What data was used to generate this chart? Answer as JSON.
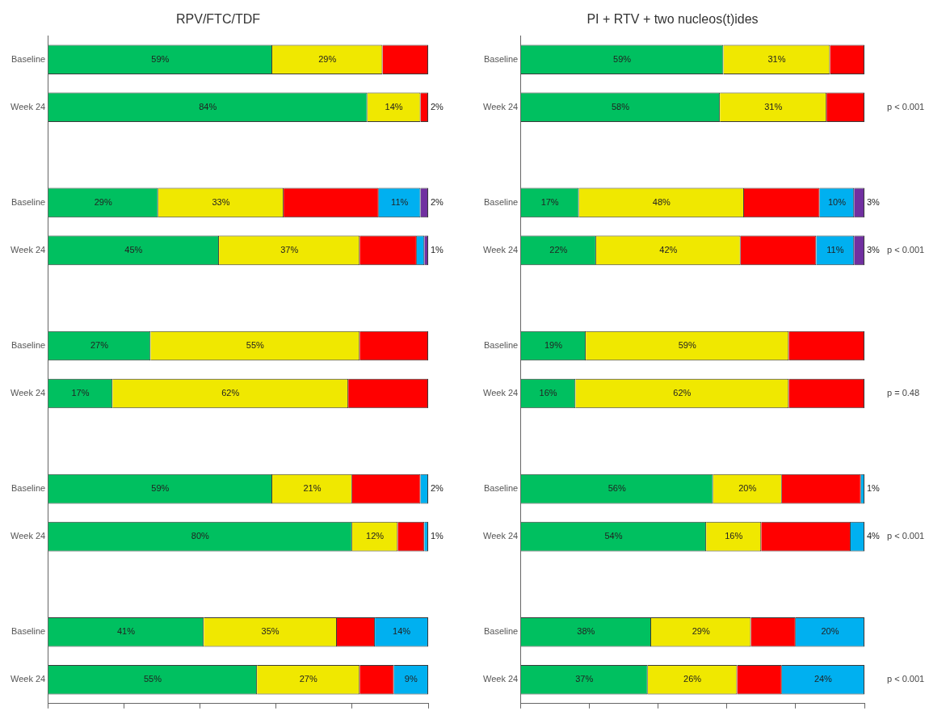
{
  "chart_data": [
    {
      "type": "bar",
      "orientation": "horizontal",
      "stacked": true,
      "title": "RPV/FTC/TDF",
      "categories": [
        "Baseline",
        "Week 24",
        null,
        "Baseline",
        "Week 24",
        null,
        "Baseline",
        "Week 24",
        null,
        "Baseline",
        "Week 24",
        null,
        "Baseline",
        "Week 24"
      ],
      "xlim": [
        0,
        100
      ],
      "xticks": [
        {
          "value": 0,
          "label": null
        },
        {
          "value": 20,
          "label": null
        },
        {
          "value": 40,
          "label": null
        },
        {
          "value": 60,
          "label": null
        },
        {
          "value": 80,
          "label": null
        },
        {
          "value": 100,
          "label": null
        }
      ],
      "tick_labels": "y",
      "grid": false,
      "legend": false,
      "series": [
        {
          "color": "#00c060",
          "values": [
            59,
            84,
            null,
            29,
            45,
            null,
            27,
            17,
            null,
            59,
            80,
            null,
            41,
            55
          ],
          "value_labels": [
            "59%",
            "84%",
            null,
            "29%",
            "45%",
            null,
            "27%",
            "17%",
            null,
            "59%",
            "80%",
            null,
            "41%",
            "55%"
          ]
        },
        {
          "color": "#f0e800",
          "values": [
            29,
            14,
            null,
            33,
            37,
            null,
            55,
            62,
            null,
            21,
            12,
            null,
            35,
            27
          ],
          "value_labels": [
            "29%",
            "14%",
            null,
            "33%",
            "37%",
            null,
            "55%",
            "62%",
            null,
            "21%",
            "12%",
            null,
            "35%",
            "27%"
          ]
        },
        {
          "color": "#ff0000",
          "values": [
            12,
            2,
            null,
            25,
            15,
            null,
            18,
            21,
            null,
            18,
            7,
            null,
            10,
            9
          ],
          "value_labels": [
            null,
            "2%",
            null,
            null,
            null,
            null,
            null,
            null,
            null,
            null,
            null,
            null,
            null,
            null
          ]
        },
        {
          "color": "#00b0f0",
          "values": [
            0,
            0,
            null,
            11,
            2,
            null,
            0,
            0,
            null,
            2,
            1,
            null,
            14,
            9
          ],
          "value_labels": [
            null,
            null,
            null,
            "11%",
            null,
            null,
            null,
            null,
            null,
            "2%",
            "1%",
            null,
            "14%",
            "9%"
          ]
        },
        {
          "color": "#7030a0",
          "values": [
            0,
            0,
            null,
            2,
            1,
            null,
            0,
            0,
            null,
            0,
            0,
            null,
            0,
            0
          ],
          "value_labels": [
            null,
            null,
            null,
            "2%",
            "1%",
            null,
            null,
            null,
            null,
            null,
            null,
            null,
            null,
            null
          ]
        }
      ]
    },
    {
      "type": "bar",
      "orientation": "horizontal",
      "stacked": true,
      "title": "PI + RTV + two nucleos(t)ides",
      "categories": [
        "Baseline",
        "Week 24",
        null,
        "Baseline",
        "Week 24",
        null,
        "Baseline",
        "Week 24",
        null,
        "Baseline",
        "Week 24",
        null,
        "Baseline",
        "Week 24"
      ],
      "xlim": [
        0,
        100
      ],
      "xticks": [
        {
          "value": 0,
          "label": null
        },
        {
          "value": 20,
          "label": null
        },
        {
          "value": 40,
          "label": null
        },
        {
          "value": 60,
          "label": null
        },
        {
          "value": 80,
          "label": null
        },
        {
          "value": 100,
          "label": null
        }
      ],
      "tick_labels": "y",
      "grid": false,
      "legend": false,
      "annotations": [
        "p < 0.001",
        "p < 0.001",
        "p = 0.48",
        "p < 0.001",
        "p < 0.001"
      ],
      "series": [
        {
          "color": "#00c060",
          "values": [
            59,
            58,
            null,
            17,
            22,
            null,
            19,
            16,
            null,
            56,
            54,
            null,
            38,
            37
          ],
          "value_labels": [
            "59%",
            "58%",
            null,
            "17%",
            "22%",
            null,
            "19%",
            "16%",
            null,
            "56%",
            "54%",
            null,
            "38%",
            "37%"
          ]
        },
        {
          "color": "#f0e800",
          "values": [
            31,
            31,
            null,
            48,
            42,
            null,
            59,
            62,
            null,
            20,
            16,
            null,
            29,
            26
          ],
          "value_labels": [
            "31%",
            "31%",
            null,
            "48%",
            "42%",
            null,
            "59%",
            "62%",
            null,
            "20%",
            "16%",
            null,
            "29%",
            "26%"
          ]
        },
        {
          "color": "#ff0000",
          "values": [
            10,
            11,
            null,
            22,
            22,
            null,
            22,
            22,
            null,
            23,
            26,
            null,
            13,
            13
          ],
          "value_labels": [
            null,
            null,
            null,
            null,
            null,
            null,
            null,
            null,
            null,
            null,
            null,
            null,
            null,
            null
          ]
        },
        {
          "color": "#00b0f0",
          "values": [
            0,
            0,
            null,
            10,
            11,
            null,
            0,
            0,
            null,
            1,
            4,
            null,
            20,
            24
          ],
          "value_labels": [
            null,
            null,
            null,
            "10%",
            "11%",
            null,
            null,
            null,
            null,
            "1%",
            "4%",
            null,
            "20%",
            "24%"
          ]
        },
        {
          "color": "#7030a0",
          "values": [
            0,
            0,
            null,
            3,
            3,
            null,
            0,
            0,
            null,
            0,
            0,
            null,
            0,
            0
          ],
          "value_labels": [
            null,
            null,
            null,
            "3%",
            "3%",
            null,
            null,
            null,
            null,
            null,
            null,
            null,
            null,
            null
          ]
        }
      ]
    }
  ]
}
